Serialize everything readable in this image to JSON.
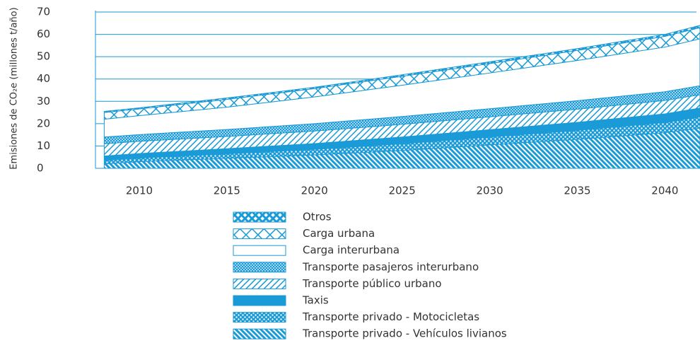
{
  "chart_data": {
    "type": "area",
    "stacked": true,
    "y_label": "Emisiones de CO₂e (millones t/año)",
    "x": [
      2008,
      2010,
      2015,
      2020,
      2025,
      2030,
      2035,
      2040,
      2042
    ],
    "xlim": [
      2007.5,
      2041.8
    ],
    "xticks": [
      2010,
      2015,
      2020,
      2025,
      2030,
      2035,
      2040
    ],
    "ylim": [
      0,
      70
    ],
    "yticks": [
      0,
      10,
      20,
      30,
      40,
      50,
      60,
      70
    ],
    "grid": true,
    "legend": "bottom",
    "series": [
      {
        "name": "Transporte privado - Vehículos livianos",
        "color": "#1a9ad6",
        "values": [
          2,
          3,
          4.5,
          6,
          8,
          10.5,
          13,
          16,
          18
        ]
      },
      {
        "name": "Transporte privado - Motocicletas",
        "color": "#1a9ad6",
        "values": [
          1.5,
          1.6,
          2,
          2.5,
          3,
          3.5,
          4,
          4.5,
          5
        ]
      },
      {
        "name": "Taxis",
        "color": "#1a9ad6",
        "values": [
          2,
          2,
          2.3,
          2.6,
          3,
          3.3,
          3.6,
          3.9,
          4
        ]
      },
      {
        "name": "Transporte público urbano",
        "color": "#1a9ad6",
        "values": [
          5.5,
          5.5,
          5.5,
          5.6,
          5.7,
          5.8,
          5.9,
          6,
          6
        ]
      },
      {
        "name": "Transporte pasajeros interurbano",
        "color": "#1a9ad6",
        "values": [
          3,
          3,
          3.1,
          3.3,
          3.5,
          3.6,
          3.8,
          3.9,
          4
        ]
      },
      {
        "name": "Carga interurbana",
        "color": "#1a9ad6",
        "values": [
          8,
          8.5,
          10,
          12,
          14,
          16,
          18,
          20,
          21
        ]
      },
      {
        "name": "Carga urbana",
        "color": "#1a9ad6",
        "values": [
          3,
          3,
          3.5,
          3.7,
          4,
          4.2,
          4.5,
          4.8,
          5
        ]
      },
      {
        "name": "Otros",
        "color": "#1a9ad6",
        "values": [
          0.5,
          0.5,
          0.6,
          0.6,
          0.7,
          0.8,
          0.8,
          0.9,
          1
        ]
      }
    ]
  }
}
